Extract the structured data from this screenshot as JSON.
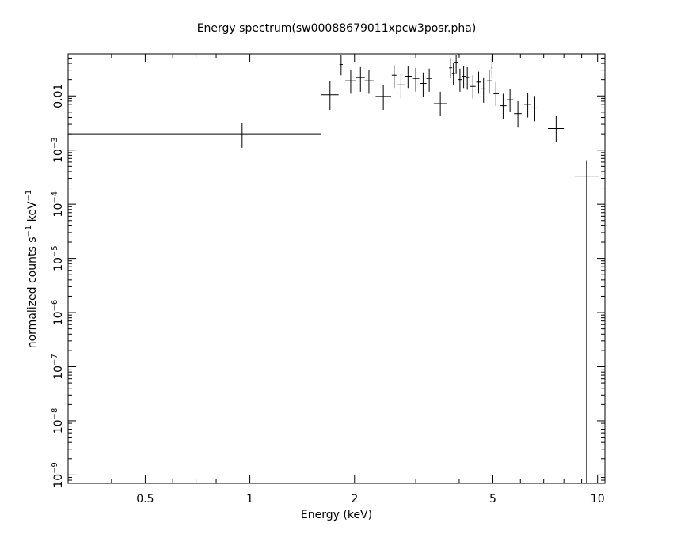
{
  "chart_data": {
    "type": "scatter",
    "title": "Energy spectrum(sw00088679011xpcw3posr.pha)",
    "xlabel": "Energy (keV)",
    "ylabel": {
      "text": "normalized counts s",
      "sup1": "−1",
      "mid": " keV",
      "sup2": "−1"
    },
    "x_scale": "log",
    "y_scale": "log",
    "xlim": [
      0.3,
      10.5
    ],
    "ylim": [
      7e-10,
      0.06
    ],
    "x_ticks": [
      {
        "value": 0.5,
        "label": "0.5"
      },
      {
        "value": 1,
        "label": "1"
      },
      {
        "value": 2,
        "label": "2"
      },
      {
        "value": 5,
        "label": "5"
      },
      {
        "value": 10,
        "label": "10"
      }
    ],
    "y_ticks": [
      {
        "value": 0.01,
        "label": "0.01",
        "base": "",
        "exp": ""
      },
      {
        "value": 0.001,
        "label": "",
        "base": "10",
        "exp": "−3"
      },
      {
        "value": 0.0001,
        "label": "",
        "base": "10",
        "exp": "−4"
      },
      {
        "value": 1e-05,
        "label": "",
        "base": "10",
        "exp": "−5"
      },
      {
        "value": 1e-06,
        "label": "",
        "base": "10",
        "exp": "−6"
      },
      {
        "value": 1e-07,
        "label": "",
        "base": "10",
        "exp": "−7"
      },
      {
        "value": 1e-08,
        "label": "",
        "base": "10",
        "exp": "−8"
      },
      {
        "value": 1e-09,
        "label": "",
        "base": "10",
        "exp": "−9"
      }
    ],
    "grid": false,
    "series": [
      {
        "color": "#000000",
        "points": [
          {
            "x": 0.95,
            "xlo": 0.3,
            "xhi": 1.6,
            "y": 0.002,
            "ylo": 0.0011,
            "yhi": 0.0032
          },
          {
            "x": 1.7,
            "xlo": 1.6,
            "xhi": 1.8,
            "y": 0.0105,
            "ylo": 0.0055,
            "yhi": 0.0185
          },
          {
            "x": 1.83,
            "xlo": 1.81,
            "xhi": 1.85,
            "y": 0.038,
            "ylo": 0.024,
            "yhi": 0.058
          },
          {
            "x": 1.95,
            "xlo": 1.88,
            "xhi": 2.02,
            "y": 0.019,
            "ylo": 0.011,
            "yhi": 0.03
          },
          {
            "x": 2.08,
            "xlo": 2.02,
            "xhi": 2.14,
            "y": 0.022,
            "ylo": 0.012,
            "yhi": 0.034
          },
          {
            "x": 2.2,
            "xlo": 2.14,
            "xhi": 2.27,
            "y": 0.019,
            "ylo": 0.011,
            "yhi": 0.03
          },
          {
            "x": 2.42,
            "xlo": 2.3,
            "xhi": 2.55,
            "y": 0.0098,
            "ylo": 0.0055,
            "yhi": 0.016
          },
          {
            "x": 2.6,
            "xlo": 2.56,
            "xhi": 2.64,
            "y": 0.024,
            "ylo": 0.014,
            "yhi": 0.037
          },
          {
            "x": 2.72,
            "xlo": 2.65,
            "xhi": 2.79,
            "y": 0.016,
            "ylo": 0.009,
            "yhi": 0.025
          },
          {
            "x": 2.85,
            "xlo": 2.79,
            "xhi": 2.92,
            "y": 0.023,
            "ylo": 0.014,
            "yhi": 0.035
          },
          {
            "x": 3.0,
            "xlo": 2.93,
            "xhi": 3.07,
            "y": 0.021,
            "ylo": 0.012,
            "yhi": 0.033
          },
          {
            "x": 3.15,
            "xlo": 3.08,
            "xhi": 3.22,
            "y": 0.017,
            "ylo": 0.0095,
            "yhi": 0.027
          },
          {
            "x": 3.28,
            "xlo": 3.22,
            "xhi": 3.34,
            "y": 0.021,
            "ylo": 0.012,
            "yhi": 0.032
          },
          {
            "x": 3.53,
            "xlo": 3.38,
            "xhi": 3.68,
            "y": 0.0072,
            "ylo": 0.0042,
            "yhi": 0.012
          },
          {
            "x": 3.78,
            "xlo": 3.74,
            "xhi": 3.82,
            "y": 0.033,
            "ylo": 0.021,
            "yhi": 0.05
          },
          {
            "x": 3.85,
            "xlo": 3.81,
            "xhi": 3.89,
            "y": 0.026,
            "ylo": 0.016,
            "yhi": 0.04
          },
          {
            "x": 3.92,
            "xlo": 3.88,
            "xhi": 3.96,
            "y": 0.042,
            "ylo": 0.026,
            "yhi": 0.058
          },
          {
            "x": 4.02,
            "xlo": 3.97,
            "xhi": 4.07,
            "y": 0.02,
            "ylo": 0.012,
            "yhi": 0.032
          },
          {
            "x": 4.12,
            "xlo": 4.07,
            "xhi": 4.17,
            "y": 0.023,
            "ylo": 0.014,
            "yhi": 0.036
          },
          {
            "x": 4.22,
            "xlo": 4.17,
            "xhi": 4.27,
            "y": 0.022,
            "ylo": 0.013,
            "yhi": 0.034
          },
          {
            "x": 4.38,
            "xlo": 4.3,
            "xhi": 4.46,
            "y": 0.015,
            "ylo": 0.009,
            "yhi": 0.024
          },
          {
            "x": 4.55,
            "xlo": 4.48,
            "xhi": 4.62,
            "y": 0.018,
            "ylo": 0.011,
            "yhi": 0.028
          },
          {
            "x": 4.7,
            "xlo": 4.63,
            "xhi": 4.77,
            "y": 0.0135,
            "ylo": 0.0075,
            "yhi": 0.022
          },
          {
            "x": 4.88,
            "xlo": 4.8,
            "xhi": 4.96,
            "y": 0.019,
            "ylo": 0.011,
            "yhi": 0.03
          },
          {
            "x": 4.97,
            "xlo": 4.95,
            "xhi": 4.99,
            "y": 0.033,
            "ylo": 0.021,
            "yhi": 0.055
          },
          {
            "x": 5.1,
            "xlo": 5.02,
            "xhi": 5.2,
            "y": 0.011,
            "ylo": 0.0065,
            "yhi": 0.018
          },
          {
            "x": 5.35,
            "xlo": 5.25,
            "xhi": 5.47,
            "y": 0.0066,
            "ylo": 0.0038,
            "yhi": 0.011
          },
          {
            "x": 5.6,
            "xlo": 5.48,
            "xhi": 5.72,
            "y": 0.0085,
            "ylo": 0.005,
            "yhi": 0.0135
          },
          {
            "x": 5.9,
            "xlo": 5.75,
            "xhi": 6.05,
            "y": 0.0047,
            "ylo": 0.0026,
            "yhi": 0.008
          },
          {
            "x": 6.3,
            "xlo": 6.15,
            "xhi": 6.45,
            "y": 0.007,
            "ylo": 0.004,
            "yhi": 0.0115
          },
          {
            "x": 6.6,
            "xlo": 6.45,
            "xhi": 6.75,
            "y": 0.006,
            "ylo": 0.0034,
            "yhi": 0.01
          },
          {
            "x": 7.6,
            "xlo": 7.2,
            "xhi": 8.0,
            "y": 0.0025,
            "ylo": 0.0014,
            "yhi": 0.0042
          },
          {
            "x": 9.3,
            "xlo": 8.6,
            "xhi": 10.1,
            "y": 0.00033,
            "ylo": 7e-10,
            "yhi": 0.00065
          }
        ]
      }
    ]
  }
}
